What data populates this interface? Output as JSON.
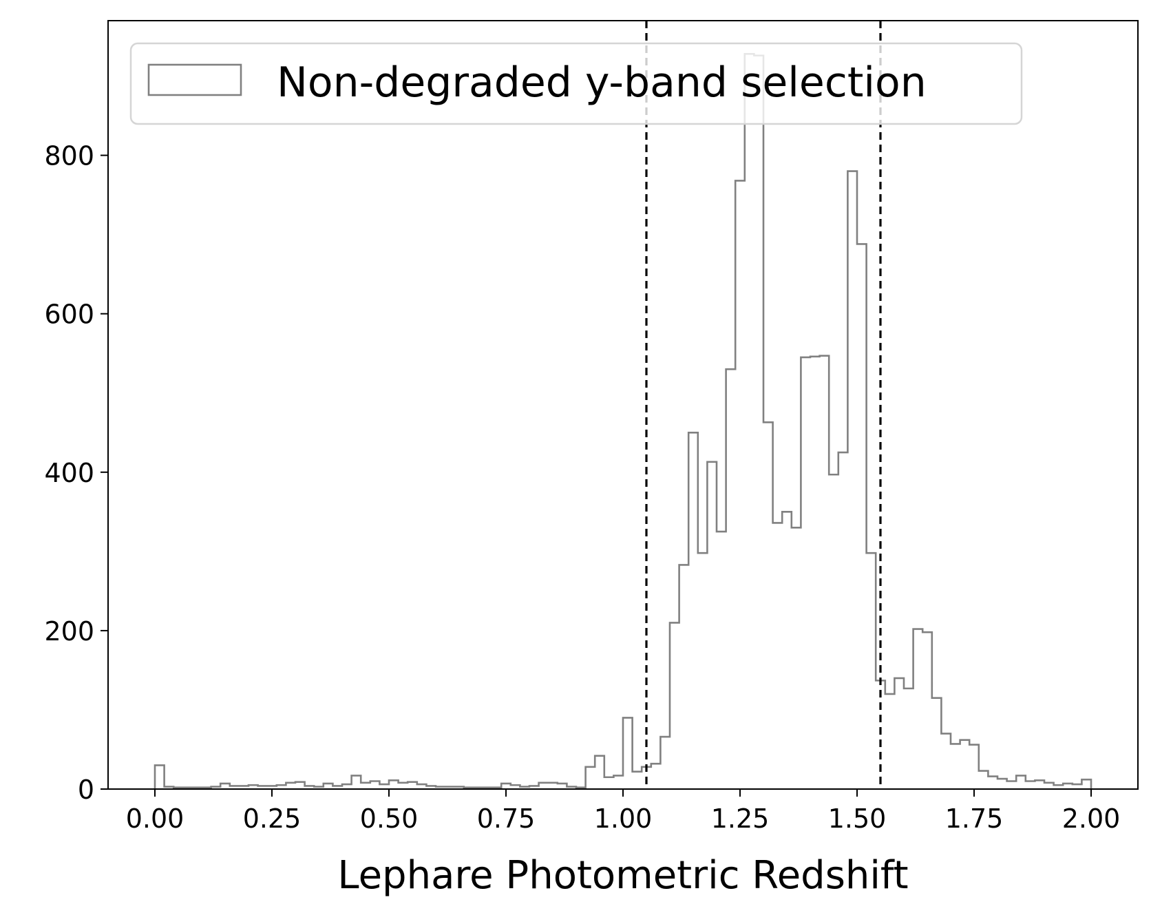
{
  "chart_data": {
    "type": "histogram",
    "xlabel": "Lephare Photometric Redshift",
    "ylabel": "",
    "xlim": [
      -0.1,
      2.1
    ],
    "ylim": [
      0,
      970
    ],
    "xticks": [
      "0.00",
      "0.25",
      "0.50",
      "0.75",
      "1.00",
      "1.25",
      "1.50",
      "1.75",
      "2.00"
    ],
    "xtick_values": [
      0,
      0.25,
      0.5,
      0.75,
      1.0,
      1.25,
      1.5,
      1.75,
      2.0
    ],
    "yticks": [
      "0",
      "200",
      "400",
      "600",
      "800"
    ],
    "ytick_values": [
      0,
      200,
      400,
      600,
      800
    ],
    "grid": false,
    "legend_position": "top-left",
    "series": [
      {
        "name": "Non-degraded y-band selection",
        "color": "#808080",
        "style": "step",
        "bin_edges_start": 0.0,
        "bin_width": 0.02,
        "values": [
          30,
          3,
          2,
          2,
          2,
          2,
          3,
          7,
          4,
          4,
          5,
          4,
          4,
          5,
          8,
          9,
          4,
          3,
          7,
          4,
          6,
          17,
          8,
          10,
          6,
          11,
          8,
          9,
          6,
          4,
          3,
          3,
          3,
          2,
          2,
          2,
          2,
          7,
          5,
          3,
          4,
          8,
          8,
          7,
          3,
          2,
          28,
          42,
          15,
          17,
          90,
          22,
          28,
          32,
          66,
          210,
          283,
          450,
          298,
          413,
          325,
          530,
          768,
          928,
          926,
          463,
          336,
          350,
          330,
          545,
          546,
          547,
          397,
          425,
          780,
          688,
          298,
          137,
          120,
          140,
          127,
          202,
          198,
          115,
          70,
          57,
          62,
          56,
          23,
          16,
          13,
          10,
          17,
          10,
          11,
          8,
          5,
          7,
          6,
          12
        ]
      }
    ],
    "vlines": [
      {
        "x": 1.05,
        "color": "#000000",
        "style": "dashed"
      },
      {
        "x": 1.55,
        "color": "#000000",
        "style": "dashed"
      }
    ]
  }
}
